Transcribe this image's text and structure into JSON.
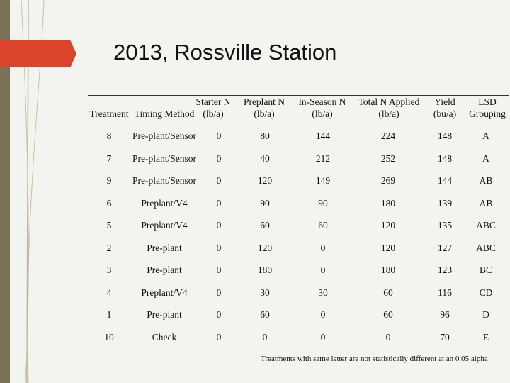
{
  "title": "2013, Rossville Station",
  "table": {
    "headers": [
      {
        "line1": "",
        "line2": "Treatment"
      },
      {
        "line1": "",
        "line2": "Timing Method"
      },
      {
        "line1": "Starter N",
        "line2": "(lb/a)"
      },
      {
        "line1": "Preplant N",
        "line2": "(lb/a)"
      },
      {
        "line1": "In-Season N",
        "line2": "(lb/a)"
      },
      {
        "line1": "Total N Applied",
        "line2": "(lb/a)"
      },
      {
        "line1": "Yield",
        "line2": "(bu/a)"
      },
      {
        "line1": "LSD",
        "line2": "Grouping"
      }
    ],
    "rows": [
      [
        "8",
        "Pre-plant/Sensor",
        "0",
        "80",
        "144",
        "224",
        "148",
        "A"
      ],
      [
        "7",
        "Pre-plant/Sensor",
        "0",
        "40",
        "212",
        "252",
        "148",
        "A"
      ],
      [
        "9",
        "Pre-plant/Sensor",
        "0",
        "120",
        "149",
        "269",
        "144",
        "AB"
      ],
      [
        "6",
        "Preplant/V4",
        "0",
        "90",
        "90",
        "180",
        "139",
        "AB"
      ],
      [
        "5",
        "Preplant/V4",
        "0",
        "60",
        "60",
        "120",
        "135",
        "ABC"
      ],
      [
        "2",
        "Pre-plant",
        "0",
        "120",
        "0",
        "120",
        "127",
        "ABC"
      ],
      [
        "3",
        "Pre-plant",
        "0",
        "180",
        "0",
        "180",
        "123",
        "BC"
      ],
      [
        "4",
        "Preplant/V4",
        "0",
        "30",
        "30",
        "60",
        "116",
        "CD"
      ],
      [
        "1",
        "Pre-plant",
        "0",
        "60",
        "0",
        "60",
        "96",
        "D"
      ],
      [
        "10",
        "Check",
        "0",
        "0",
        "0",
        "0",
        "70",
        "E"
      ]
    ]
  },
  "footnote": "Treatments with same letter are not statistically different at an 0.05 alpha",
  "colors": {
    "sidebar": "#7b7158",
    "accent": "#d9442a",
    "background": "#f3f3ef"
  }
}
